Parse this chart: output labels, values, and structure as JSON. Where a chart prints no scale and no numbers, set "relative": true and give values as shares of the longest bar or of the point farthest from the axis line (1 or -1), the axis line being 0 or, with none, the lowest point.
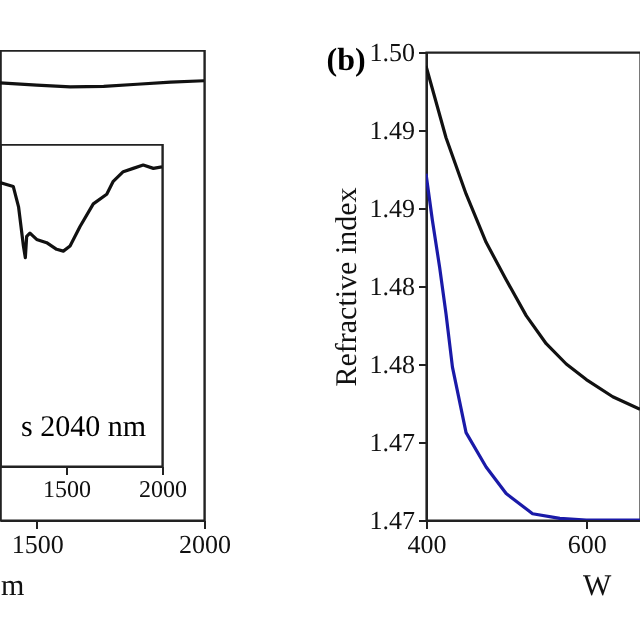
{
  "chart_data": [
    {
      "type": "line",
      "xlabel": "m",
      "relative": true,
      "xlim": [
        1390,
        2000
      ],
      "xticks": [
        1500,
        2000
      ],
      "series": [
        {
          "color": "#111111",
          "x": [
            1390,
            1500,
            1600,
            1700,
            1800,
            1900,
            2000
          ],
          "values": [
            0.995,
            0.99,
            0.986,
            0.987,
            0.992,
            0.997,
            1
          ]
        }
      ]
    },
    {
      "type": "line",
      "relative": true,
      "annotations": [
        "s 2040 nm"
      ],
      "xlim": [
        1156,
        2000
      ],
      "xticks": [
        1500,
        2000
      ],
      "series": [
        {
          "color": "#111111",
          "x": [
            1156,
            1225,
            1253,
            1278,
            1288,
            1295,
            1312,
            1347,
            1399,
            1451,
            1486,
            1521,
            1573,
            1642,
            1712,
            1746,
            1798,
            1850,
            1902,
            1955,
            2000
          ],
          "values": [
            0.942,
            0.929,
            0.86,
            0.731,
            0.692,
            0.763,
            0.774,
            0.753,
            0.742,
            0.72,
            0.714,
            0.731,
            0.796,
            0.871,
            0.903,
            0.946,
            0.978,
            0.989,
            1,
            0.989,
            0.994
          ]
        }
      ]
    },
    {
      "type": "line",
      "title": "(b)",
      "xlabel": "W",
      "ylabel": "Refractive index",
      "xlim": [
        400,
        667
      ],
      "ylim": [
        1.47,
        1.5
      ],
      "xticks": [
        400,
        600
      ],
      "yticks": [
        {
          "value": 1.5,
          "label": "1.50"
        },
        {
          "value": 1.495,
          "label": "1.49"
        },
        {
          "value": 1.49,
          "label": "1.49"
        },
        {
          "value": 1.485,
          "label": "1.48"
        },
        {
          "value": 1.48,
          "label": "1.48"
        },
        {
          "value": 1.475,
          "label": "1.47"
        },
        {
          "value": 1.47,
          "label": "1.47"
        }
      ],
      "series": [
        {
          "color": "#111111",
          "x": [
            400,
            425,
            450,
            475,
            500,
            525,
            550,
            575,
            600,
            633,
            667
          ],
          "values": [
            1.4991,
            1.4945,
            1.4909,
            1.4878,
            1.4854,
            1.4831,
            1.4813,
            1.48,
            1.479,
            1.4779,
            1.4771
          ]
        },
        {
          "color": "#1a1aa8",
          "x": [
            400,
            408,
            417,
            425,
            433,
            450,
            475,
            500,
            533,
            567,
            600,
            667
          ],
          "values": [
            1.4922,
            1.4892,
            1.4862,
            1.4832,
            1.4798,
            1.4756,
            1.4734,
            1.4717,
            1.4704,
            1.4701,
            1.47,
            1.47
          ]
        }
      ]
    }
  ]
}
